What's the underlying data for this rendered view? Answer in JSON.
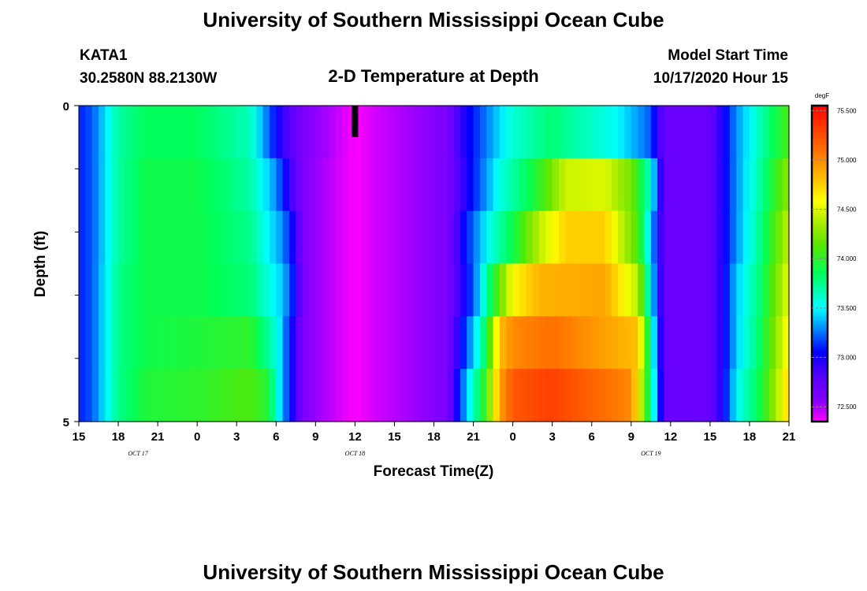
{
  "header": {
    "title": "University of Southern Mississippi Ocean Cube",
    "station": "KATA1",
    "coords": "30.2580N 88.2130W",
    "subtitle": "2-D Temperature at Depth",
    "model_start_label": "Model Start Time",
    "model_start_value": "10/17/2020 Hour 15"
  },
  "footer": {
    "title": "University of Southern Mississippi Ocean Cube"
  },
  "chart_data": {
    "type": "heatmap",
    "xlabel": "Forecast Time(Z)",
    "ylabel": "Depth (ft)",
    "x_hours_range": [
      0,
      54
    ],
    "ylim": [
      0,
      5
    ],
    "y_tick_labels": [
      {
        "value": 0,
        "label": "0"
      },
      {
        "value": 5,
        "label": "5"
      }
    ],
    "y_minor_ticks": [
      1,
      2,
      3,
      4
    ],
    "x_tick_labels": [
      "15",
      "18",
      "21",
      "0",
      "3",
      "6",
      "9",
      "12",
      "15",
      "18",
      "21",
      "0",
      "3",
      "6",
      "9",
      "12",
      "15",
      "18",
      "21"
    ],
    "date_labels": [
      {
        "hour": 4.5,
        "label": "OCT 17"
      },
      {
        "hour": 21,
        "label": "OCT 18"
      },
      {
        "hour": 43.5,
        "label": "OCT 19"
      }
    ],
    "current_time_marker_hour": 21,
    "colorbar": {
      "unit": "degF",
      "min": 72.35,
      "max": 75.55,
      "tick_labels": [
        "75.500",
        "75.000",
        "74.500",
        "74.000",
        "73.500",
        "73.000",
        "72.500"
      ],
      "tick_values": [
        75.5,
        75.0,
        74.5,
        74.0,
        73.5,
        73.0,
        72.5
      ]
    },
    "depth_rows": [
      {
        "depth": 0,
        "keypoints": [
          [
            0,
            73.1
          ],
          [
            1,
            73.2
          ],
          [
            3,
            73.7
          ],
          [
            5,
            73.85
          ],
          [
            9,
            73.85
          ],
          [
            13,
            73.65
          ],
          [
            14.5,
            73.2
          ],
          [
            15.5,
            72.9
          ],
          [
            17,
            72.6
          ],
          [
            19,
            72.5
          ],
          [
            21,
            72.35
          ],
          [
            23,
            72.45
          ],
          [
            28,
            72.6
          ],
          [
            29,
            72.9
          ],
          [
            30,
            73.1
          ],
          [
            33,
            73.6
          ],
          [
            36,
            73.8
          ],
          [
            41,
            73.5
          ],
          [
            43.5,
            73.2
          ],
          [
            44.5,
            72.7
          ],
          [
            48,
            72.7
          ],
          [
            49,
            73.0
          ],
          [
            50,
            73.3
          ],
          [
            52,
            73.7
          ],
          [
            54,
            74.1
          ]
        ]
      },
      {
        "depth": 1,
        "keypoints": [
          [
            0,
            73.1
          ],
          [
            1,
            73.2
          ],
          [
            3,
            73.7
          ],
          [
            5,
            73.9
          ],
          [
            9,
            73.9
          ],
          [
            13,
            73.7
          ],
          [
            15,
            73.3
          ],
          [
            16,
            72.9
          ],
          [
            17,
            72.6
          ],
          [
            21,
            72.35
          ],
          [
            23,
            72.45
          ],
          [
            28,
            72.6
          ],
          [
            30,
            73.1
          ],
          [
            32,
            73.55
          ],
          [
            35,
            74.0
          ],
          [
            37,
            74.45
          ],
          [
            40,
            74.5
          ],
          [
            42,
            74.2
          ],
          [
            43.5,
            73.6
          ],
          [
            44.5,
            72.7
          ],
          [
            48,
            72.7
          ],
          [
            49,
            73.0
          ],
          [
            50,
            73.3
          ],
          [
            52,
            73.75
          ],
          [
            54,
            74.3
          ]
        ]
      },
      {
        "depth": 2,
        "keypoints": [
          [
            0,
            73.1
          ],
          [
            1,
            73.2
          ],
          [
            3,
            73.7
          ],
          [
            5,
            73.9
          ],
          [
            9,
            73.9
          ],
          [
            13,
            73.75
          ],
          [
            15.5,
            73.3
          ],
          [
            16.5,
            72.9
          ],
          [
            17,
            72.6
          ],
          [
            21,
            72.35
          ],
          [
            23,
            72.45
          ],
          [
            28,
            72.6
          ],
          [
            29.5,
            73.1
          ],
          [
            31,
            73.5
          ],
          [
            33,
            73.9
          ],
          [
            35,
            74.4
          ],
          [
            37,
            74.75
          ],
          [
            40,
            74.75
          ],
          [
            42.5,
            74.1
          ],
          [
            43.5,
            73.4
          ],
          [
            44.5,
            72.7
          ],
          [
            48,
            72.7
          ],
          [
            49,
            73.0
          ],
          [
            50,
            73.3
          ],
          [
            52,
            73.8
          ],
          [
            54,
            74.45
          ]
        ]
      },
      {
        "depth": 3,
        "keypoints": [
          [
            0,
            73.1
          ],
          [
            1,
            73.2
          ],
          [
            3,
            73.75
          ],
          [
            5,
            73.9
          ],
          [
            9,
            73.9
          ],
          [
            13,
            73.8
          ],
          [
            15.5,
            73.4
          ],
          [
            16.5,
            73.0
          ],
          [
            17,
            72.6
          ],
          [
            21,
            72.35
          ],
          [
            23,
            72.45
          ],
          [
            28,
            72.6
          ],
          [
            30,
            73.2
          ],
          [
            31,
            73.7
          ],
          [
            33,
            74.6
          ],
          [
            35,
            74.85
          ],
          [
            40,
            74.9
          ],
          [
            42.5,
            74.4
          ],
          [
            43.5,
            73.5
          ],
          [
            44.5,
            72.7
          ],
          [
            48,
            72.7
          ],
          [
            49,
            73.0
          ],
          [
            50,
            73.4
          ],
          [
            52,
            73.85
          ],
          [
            54,
            74.55
          ]
        ]
      },
      {
        "depth": 4,
        "keypoints": [
          [
            0,
            73.1
          ],
          [
            1,
            73.2
          ],
          [
            3,
            73.75
          ],
          [
            5,
            73.9
          ],
          [
            9,
            73.95
          ],
          [
            13,
            74.0
          ],
          [
            15,
            73.6
          ],
          [
            16,
            73.1
          ],
          [
            17,
            72.6
          ],
          [
            21,
            72.35
          ],
          [
            23,
            72.45
          ],
          [
            28,
            72.6
          ],
          [
            30,
            73.4
          ],
          [
            31,
            73.9
          ],
          [
            32,
            74.8
          ],
          [
            33,
            75.0
          ],
          [
            36,
            75.1
          ],
          [
            42.5,
            74.8
          ],
          [
            43.5,
            73.7
          ],
          [
            44.5,
            72.7
          ],
          [
            48,
            72.7
          ],
          [
            49,
            73.0
          ],
          [
            50,
            73.4
          ],
          [
            52,
            73.9
          ],
          [
            54,
            74.65
          ]
        ]
      },
      {
        "depth": 5,
        "keypoints": [
          [
            0,
            73.1
          ],
          [
            1,
            73.2
          ],
          [
            3,
            73.75
          ],
          [
            5,
            73.95
          ],
          [
            9,
            74.0
          ],
          [
            13,
            74.1
          ],
          [
            14.5,
            73.95
          ],
          [
            15,
            73.6
          ],
          [
            16,
            73.1
          ],
          [
            17,
            72.6
          ],
          [
            21,
            72.35
          ],
          [
            23,
            72.45
          ],
          [
            28,
            72.6
          ],
          [
            29.5,
            73.4
          ],
          [
            31,
            74.1
          ],
          [
            32,
            74.9
          ],
          [
            33,
            75.2
          ],
          [
            36,
            75.3
          ],
          [
            42,
            75.0
          ],
          [
            43,
            74.2
          ],
          [
            44,
            73.3
          ],
          [
            44.5,
            72.7
          ],
          [
            48,
            72.7
          ],
          [
            49,
            73.0
          ],
          [
            50,
            73.5
          ],
          [
            52,
            73.95
          ],
          [
            54,
            74.75
          ]
        ]
      }
    ]
  }
}
